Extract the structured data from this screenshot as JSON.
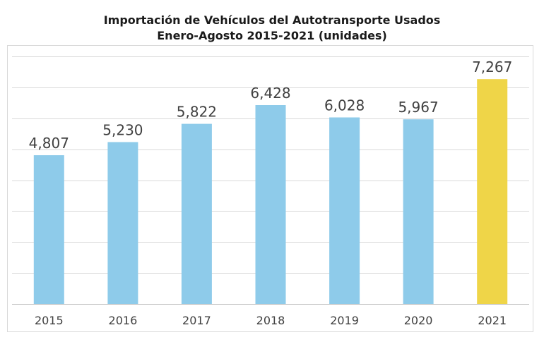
{
  "chart_data": {
    "type": "bar",
    "title": "Importación de Vehículos del Autotransporte Usados",
    "subtitle": "Enero-Agosto 2015-2021 (unidades)",
    "categories": [
      "2015",
      "2016",
      "2017",
      "2018",
      "2019",
      "2020",
      "2021"
    ],
    "values": [
      4807,
      5230,
      5822,
      6428,
      6028,
      5967,
      7267
    ],
    "value_labels": [
      "4,807",
      "5,230",
      "5,822",
      "6,428",
      "6,028",
      "5,967",
      "7,267"
    ],
    "highlight_index": 6,
    "colors": {
      "bar": "#8ecbea",
      "highlight": "#efd548",
      "grid": "#d9d9d9",
      "axis": "#bfbfbf"
    },
    "ylim": [
      0,
      8000
    ],
    "grid": true,
    "xlabel": "",
    "ylabel": ""
  }
}
